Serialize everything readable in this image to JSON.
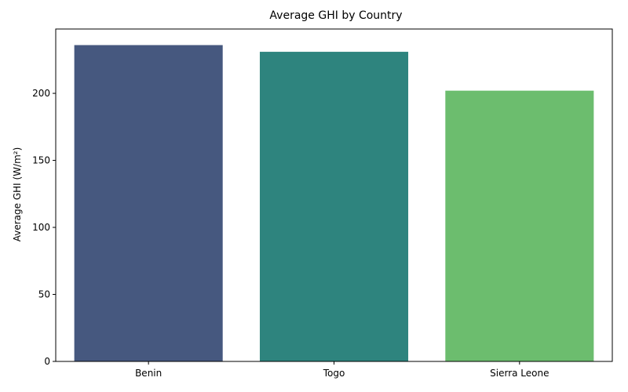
{
  "chart_data": {
    "type": "bar",
    "title": "Average GHI by Country",
    "xlabel": "",
    "ylabel": "Average GHI (W/m²)",
    "categories": [
      "Benin",
      "Togo",
      "Sierra Leone"
    ],
    "values": [
      236,
      231,
      202
    ],
    "colors": [
      "#46587f",
      "#2e847e",
      "#6cbd6e"
    ],
    "ylim": [
      0,
      248
    ],
    "yticks": [
      0,
      50,
      100,
      150,
      200
    ],
    "grid": false,
    "legend": "none"
  }
}
